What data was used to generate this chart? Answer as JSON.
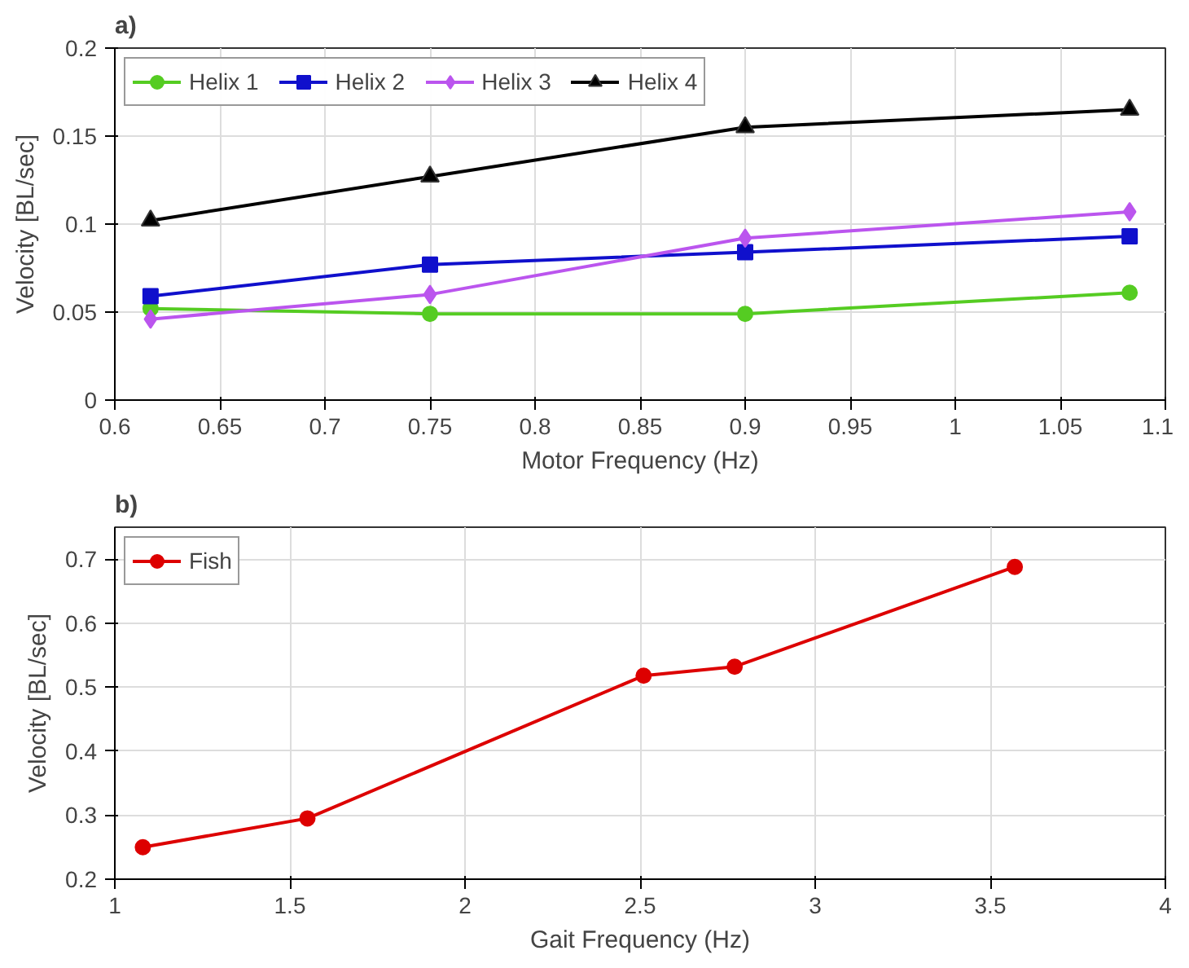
{
  "chart_data": [
    {
      "type": "line",
      "title": "a)",
      "xlabel": "Motor Frequency (Hz)",
      "ylabel": "Velocity [BL/sec]",
      "x": [
        0.617,
        0.75,
        0.9,
        1.083
      ],
      "series": [
        {
          "name": "Helix 1",
          "color": "#55cc22",
          "marker": "circle",
          "values": [
            0.052,
            0.049,
            0.049,
            0.061
          ]
        },
        {
          "name": "Helix 2",
          "color": "#1010cc",
          "marker": "square",
          "values": [
            0.059,
            0.077,
            0.084,
            0.093
          ]
        },
        {
          "name": "Helix 3",
          "color": "#bb55ee",
          "marker": "diamond",
          "values": [
            0.046,
            0.06,
            0.092,
            0.107
          ]
        },
        {
          "name": "Helix 4",
          "color": "#000000",
          "marker": "triangle",
          "values": [
            0.102,
            0.127,
            0.155,
            0.165
          ]
        }
      ],
      "xlim": [
        0.6,
        1.1
      ],
      "xticks": [
        0.6,
        0.65,
        0.7,
        0.75,
        0.8,
        0.85,
        0.9,
        0.95,
        1,
        1.05,
        1.1
      ],
      "ylim": [
        0,
        0.2
      ],
      "yticks": [
        0,
        0.05,
        0.1,
        0.15,
        0.2
      ],
      "grid": true,
      "legend": "top left",
      "line_style": "solid"
    },
    {
      "type": "line",
      "title": "b)",
      "xlabel": "Gait Frequency (Hz)",
      "ylabel": "Velocity [BL/sec]",
      "x": [
        1.08,
        1.55,
        2.51,
        2.77,
        3.57
      ],
      "series": [
        {
          "name": "Fish",
          "color": "#dd0000",
          "values": [
            0.25,
            0.295,
            0.518,
            0.532,
            0.688
          ]
        }
      ],
      "xlim": [
        1,
        4
      ],
      "xticks": [
        1,
        1.5,
        2,
        2.5,
        3,
        3.5,
        4
      ],
      "ylim": [
        0.2,
        0.75
      ],
      "yticks": [
        0.2,
        0.3,
        0.4,
        0.5,
        0.6,
        0.7
      ],
      "grid": true,
      "legend": "top left",
      "marker": "circle",
      "line_style": "solid"
    }
  ]
}
